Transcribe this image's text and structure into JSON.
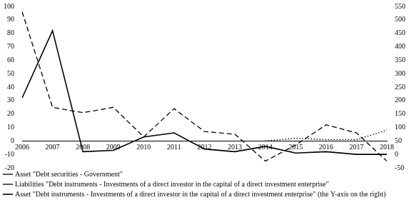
{
  "chart_data": {
    "type": "line",
    "categories": [
      "2006",
      "2007",
      "2008",
      "2009",
      "2010",
      "2011",
      "2012",
      "2013",
      "2014",
      "2015",
      "2016",
      "2017",
      "2018"
    ],
    "series": [
      {
        "name": "Asset \"Debt securities - Government\"",
        "color": "#000000",
        "line_style": "dotted",
        "axis": "y",
        "values": [
          null,
          null,
          null,
          null,
          null,
          null,
          null,
          null,
          0,
          2,
          1,
          1,
          8
        ]
      },
      {
        "name": "Liabilities \"Debt instruments - Investments of a direct investor in the capital of a direct investment enterprise\"",
        "color": "#000000",
        "line_style": "dashed",
        "axis": "y",
        "values": [
          96,
          25,
          21,
          25,
          3,
          24,
          7,
          5,
          -15,
          -3,
          12,
          6,
          -15
        ]
      },
      {
        "name": "Asset \"Debt instruments - Investments of a direct investor in the capital of a direct investment enterprise\" (the Y-axis on the right)",
        "color": "#000000",
        "line_style": "solid",
        "axis": "y2",
        "values": [
          210,
          460,
          10,
          15,
          65,
          80,
          20,
          10,
          30,
          5,
          10,
          0,
          0
        ]
      }
    ],
    "ylim": [
      -20,
      100
    ],
    "yticks": [
      -20,
      -10,
      0,
      10,
      20,
      30,
      40,
      50,
      60,
      70,
      80,
      90,
      100
    ],
    "y2lim": [
      -50,
      550
    ],
    "y2ticks": [
      -50,
      0,
      50,
      100,
      150,
      200,
      250,
      300,
      350,
      400,
      450,
      500,
      550
    ],
    "grid": false,
    "legend": "bottom"
  }
}
